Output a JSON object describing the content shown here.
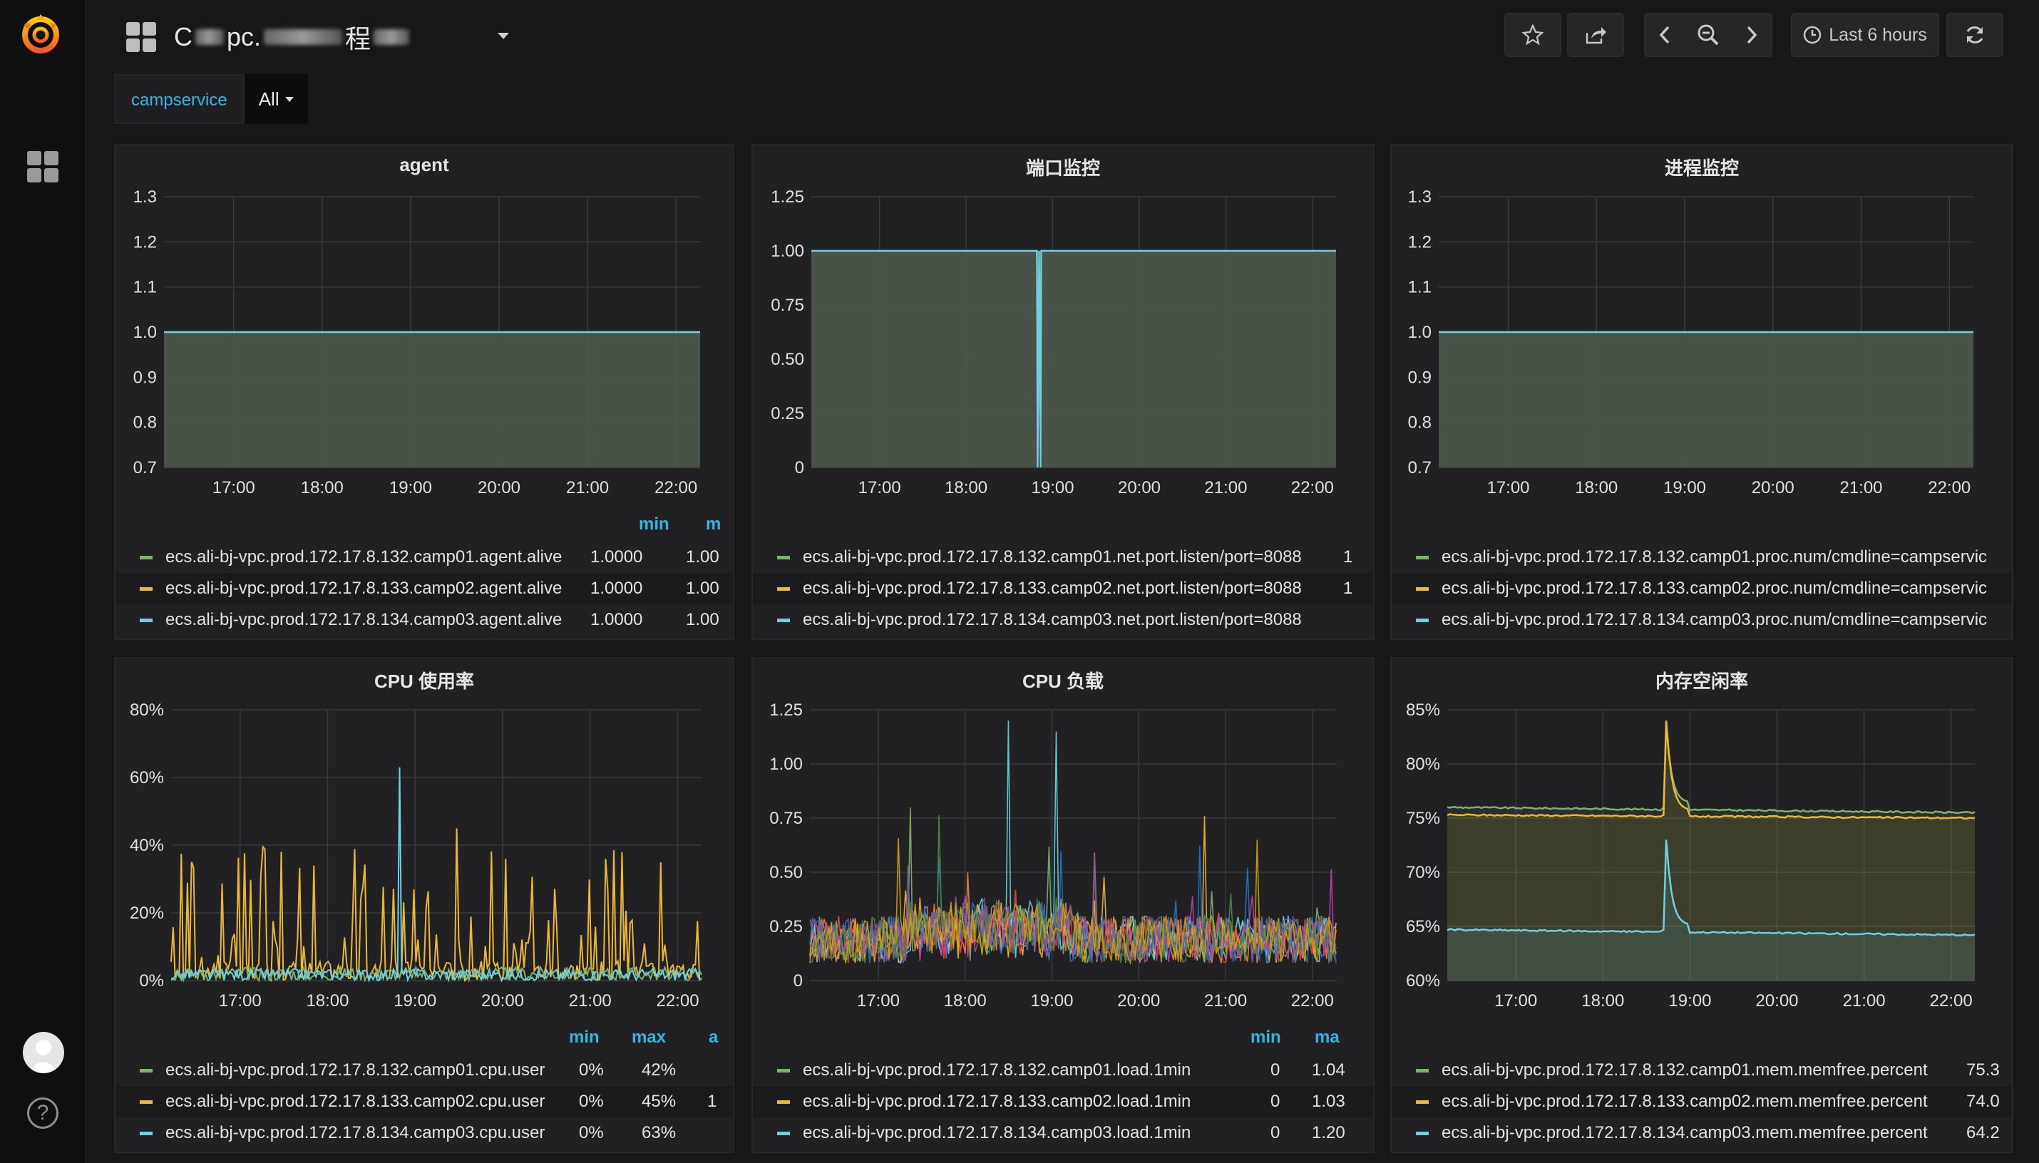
{
  "header": {
    "title_prefix": "C",
    "title_mid": "pc.",
    "title_chars": "程",
    "time_range": "Last 6 hours"
  },
  "variables": {
    "label": "campservice",
    "selected": "All"
  },
  "icons": {
    "logo": "grafana-logo-icon",
    "dashboards": "dashboards-grid-icon",
    "star": "star-icon",
    "share": "share-icon",
    "back": "chevron-left-icon",
    "zoom": "zoom-out-icon",
    "forward": "chevron-right-icon",
    "clock": "clock-icon",
    "refresh": "refresh-icon",
    "help": "help-icon",
    "avatar": "user-avatar-icon"
  },
  "colors": {
    "green": "#7eb26d",
    "yellow": "#eab839",
    "cyan": "#6ed0e0",
    "accent": "#33b5e5"
  },
  "xticks": [
    "17:00",
    "18:00",
    "19:00",
    "20:00",
    "21:00",
    "22:00"
  ],
  "panels": [
    {
      "title": "agent",
      "legend_headers": [
        "min",
        "m"
      ],
      "series": [
        {
          "name": "ecs.ali-bj-vpc.prod.172.17.8.132.camp01.agent.alive",
          "v1": "1.0000",
          "v2": "1.00"
        },
        {
          "name": "ecs.ali-bj-vpc.prod.172.17.8.133.camp02.agent.alive",
          "v1": "1.0000",
          "v2": "1.00"
        },
        {
          "name": "ecs.ali-bj-vpc.prod.172.17.8.134.camp03.agent.alive",
          "v1": "1.0000",
          "v2": "1.00"
        }
      ]
    },
    {
      "title": "端口监控",
      "legend_headers": [],
      "series": [
        {
          "name": "ecs.ali-bj-vpc.prod.172.17.8.132.camp01.net.port.listen/port=8088",
          "v1": "1",
          "v2": ""
        },
        {
          "name": "ecs.ali-bj-vpc.prod.172.17.8.133.camp02.net.port.listen/port=8088",
          "v1": "1",
          "v2": ""
        },
        {
          "name": "ecs.ali-bj-vpc.prod.172.17.8.134.camp03.net.port.listen/port=8088",
          "v1": "",
          "v2": ""
        }
      ]
    },
    {
      "title": "进程监控",
      "legend_headers": [],
      "series": [
        {
          "name": "ecs.ali-bj-vpc.prod.172.17.8.132.camp01.proc.num/cmdline=campservic",
          "v1": "",
          "v2": ""
        },
        {
          "name": "ecs.ali-bj-vpc.prod.172.17.8.133.camp02.proc.num/cmdline=campservic",
          "v1": "",
          "v2": ""
        },
        {
          "name": "ecs.ali-bj-vpc.prod.172.17.8.134.camp03.proc.num/cmdline=campservic",
          "v1": "",
          "v2": ""
        }
      ]
    },
    {
      "title": "CPU 使用率",
      "legend_headers": [
        "min",
        "max",
        "a"
      ],
      "series": [
        {
          "name": "ecs.ali-bj-vpc.prod.172.17.8.132.camp01.cpu.user",
          "v1": "0%",
          "v2": "42%",
          "v3": ""
        },
        {
          "name": "ecs.ali-bj-vpc.prod.172.17.8.133.camp02.cpu.user",
          "v1": "0%",
          "v2": "45%",
          "v3": "1"
        },
        {
          "name": "ecs.ali-bj-vpc.prod.172.17.8.134.camp03.cpu.user",
          "v1": "0%",
          "v2": "63%",
          "v3": ""
        }
      ]
    },
    {
      "title": "CPU 负载",
      "legend_headers": [
        "min",
        "ma"
      ],
      "series": [
        {
          "name": "ecs.ali-bj-vpc.prod.172.17.8.132.camp01.load.1min",
          "v1": "0",
          "v2": "1.04"
        },
        {
          "name": "ecs.ali-bj-vpc.prod.172.17.8.133.camp02.load.1min",
          "v1": "0",
          "v2": "1.03"
        },
        {
          "name": "ecs.ali-bj-vpc.prod.172.17.8.134.camp03.load.1min",
          "v1": "0",
          "v2": "1.20"
        }
      ]
    },
    {
      "title": "内存空闲率",
      "legend_headers": [],
      "series": [
        {
          "name": "ecs.ali-bj-vpc.prod.172.17.8.132.camp01.mem.memfree.percent",
          "v1": "75.3",
          "v2": ""
        },
        {
          "name": "ecs.ali-bj-vpc.prod.172.17.8.133.camp02.mem.memfree.percent",
          "v1": "74.0",
          "v2": ""
        },
        {
          "name": "ecs.ali-bj-vpc.prod.172.17.8.134.camp03.mem.memfree.percent",
          "v1": "64.2",
          "v2": ""
        }
      ]
    }
  ],
  "chart_data": [
    {
      "type": "area",
      "title": "agent",
      "yticks": [
        "1.3",
        "1.2",
        "1.1",
        "1.0",
        "0.9",
        "0.8",
        "0.7"
      ],
      "ylim": [
        0.7,
        1.3
      ],
      "series": [
        {
          "name": "camp01.agent.alive",
          "values": [
            1.0,
            1.0
          ]
        },
        {
          "name": "camp02.agent.alive",
          "values": [
            1.0,
            1.0
          ]
        },
        {
          "name": "camp03.agent.alive",
          "values": [
            1.0,
            1.0
          ]
        }
      ]
    },
    {
      "type": "area",
      "title": "端口监控",
      "yticks": [
        "1.25",
        "1.00",
        "0.75",
        "0.50",
        "0.25",
        "0"
      ],
      "ylim": [
        0,
        1.25
      ],
      "series": [
        {
          "name": "port=8088",
          "values": [
            1.0,
            1.0,
            0,
            1.0
          ]
        }
      ]
    },
    {
      "type": "area",
      "title": "进程监控",
      "yticks": [
        "1.3",
        "1.2",
        "1.1",
        "1.0",
        "0.9",
        "0.8",
        "0.7"
      ],
      "ylim": [
        0.7,
        1.3
      ],
      "series": [
        {
          "name": "proc.num",
          "values": [
            1.0,
            1.0
          ]
        }
      ]
    },
    {
      "type": "line",
      "title": "CPU 使用率",
      "yticks": [
        "80%",
        "60%",
        "40%",
        "20%",
        "0%"
      ],
      "ylim": [
        0,
        80
      ],
      "series": [
        {
          "name": "camp01",
          "max": 42
        },
        {
          "name": "camp02",
          "max": 45
        },
        {
          "name": "camp03",
          "max": 63
        }
      ]
    },
    {
      "type": "line",
      "title": "CPU 负载",
      "yticks": [
        "1.25",
        "1.00",
        "0.75",
        "0.50",
        "0.25",
        "0"
      ],
      "ylim": [
        0,
        1.25
      ],
      "series": [
        {
          "name": "camp01",
          "max": 1.04
        },
        {
          "name": "camp02",
          "max": 1.03
        },
        {
          "name": "camp03",
          "max": 1.2
        }
      ]
    },
    {
      "type": "area",
      "title": "内存空闲率",
      "yticks": [
        "85%",
        "80%",
        "75%",
        "70%",
        "65%",
        "60%"
      ],
      "ylim": [
        60,
        85
      ],
      "series": [
        {
          "name": "camp01",
          "values": [
            76,
            75.5
          ]
        },
        {
          "name": "camp02",
          "values": [
            75.3,
            75
          ]
        },
        {
          "name": "camp03",
          "values": [
            64.7,
            64.2
          ]
        }
      ]
    }
  ]
}
